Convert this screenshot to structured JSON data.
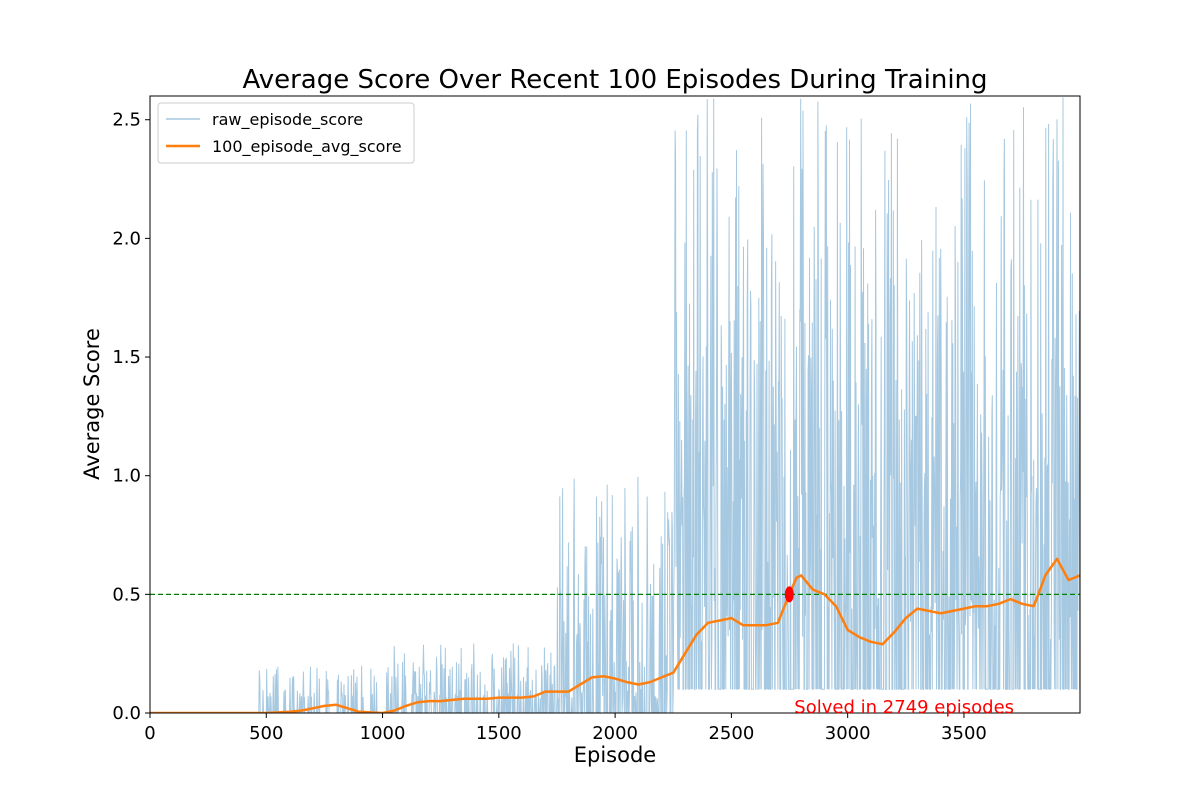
{
  "chart_data": {
    "type": "line",
    "title": "Average Score Over Recent 100 Episodes During Training",
    "xlabel": "Episode",
    "ylabel": "Average Score",
    "xlim": [
      0,
      3999
    ],
    "ylim": [
      0,
      2.6
    ],
    "x_ticks": [
      0,
      500,
      1000,
      1500,
      2000,
      2500,
      3000,
      3500
    ],
    "y_ticks": [
      0.0,
      0.5,
      1.0,
      1.5,
      2.0,
      2.5
    ],
    "x_tick_labels": [
      "0",
      "500",
      "1000",
      "1500",
      "2000",
      "2500",
      "3000",
      "3500"
    ],
    "y_tick_labels": [
      "0.0",
      "0.5",
      "1.0",
      "1.5",
      "2.0",
      "2.5"
    ],
    "grid": false,
    "legend": {
      "placement": "top-left",
      "entries": [
        "raw_episode_score",
        "100_episode_avg_score"
      ]
    },
    "colors": {
      "raw": "#a6c8e0",
      "avg": "#ff7f0e",
      "threshold": "#008000",
      "marker": "#ff0000",
      "annotation": "#ff0000"
    },
    "threshold": {
      "y": 0.5,
      "style": "dashed"
    },
    "solved_point": {
      "x": 2749,
      "y": 0.5
    },
    "annotation": {
      "text": "Solved in 2749 episodes",
      "x": 2749,
      "y": 0.0
    },
    "series": [
      {
        "name": "100_episode_avg_score",
        "style": "line",
        "x": [
          0,
          500,
          600,
          650,
          700,
          750,
          800,
          850,
          900,
          1000,
          1050,
          1100,
          1150,
          1200,
          1250,
          1300,
          1350,
          1400,
          1450,
          1500,
          1550,
          1600,
          1650,
          1700,
          1750,
          1800,
          1850,
          1900,
          1950,
          2000,
          2050,
          2100,
          2150,
          2200,
          2250,
          2300,
          2350,
          2400,
          2450,
          2500,
          2550,
          2600,
          2650,
          2700,
          2749,
          2780,
          2800,
          2850,
          2900,
          2950,
          3000,
          3050,
          3100,
          3150,
          3200,
          3250,
          3300,
          3350,
          3400,
          3450,
          3500,
          3550,
          3600,
          3650,
          3700,
          3750,
          3800,
          3820,
          3850,
          3900,
          3950,
          3999
        ],
        "y": [
          0.0,
          0.0,
          0.005,
          0.01,
          0.02,
          0.03,
          0.035,
          0.02,
          0.005,
          0.0,
          0.01,
          0.03,
          0.045,
          0.05,
          0.05,
          0.055,
          0.06,
          0.06,
          0.06,
          0.065,
          0.065,
          0.065,
          0.07,
          0.09,
          0.09,
          0.09,
          0.12,
          0.15,
          0.155,
          0.145,
          0.13,
          0.12,
          0.13,
          0.15,
          0.17,
          0.25,
          0.33,
          0.38,
          0.39,
          0.4,
          0.37,
          0.37,
          0.37,
          0.38,
          0.5,
          0.57,
          0.58,
          0.52,
          0.5,
          0.45,
          0.35,
          0.32,
          0.3,
          0.29,
          0.34,
          0.4,
          0.44,
          0.43,
          0.42,
          0.43,
          0.44,
          0.45,
          0.45,
          0.46,
          0.48,
          0.46,
          0.45,
          0.5,
          0.58,
          0.65,
          0.56,
          0.58
        ]
      },
      {
        "name": "raw_episode_score",
        "style": "dense_line",
        "segments": [
          {
            "x_range": [
              0,
              450
            ],
            "base": 0.0,
            "peaks": [
              0.0
            ],
            "peak_rate": 0.0
          },
          {
            "x_range": [
              450,
              1050
            ],
            "base": 0.0,
            "peaks": [
              0.1,
              0.2
            ],
            "peak_rate": 0.2
          },
          {
            "x_range": [
              1050,
              1750
            ],
            "base": 0.0,
            "peaks": [
              0.1,
              0.2,
              0.3
            ],
            "peak_rate": 0.35
          },
          {
            "x_range": [
              1750,
              2250
            ],
            "base": 0.0,
            "peaks": [
              0.1,
              0.3,
              0.5,
              0.8,
              1.0
            ],
            "peak_rate": 0.45
          },
          {
            "x_range": [
              2250,
              2750
            ],
            "base": 0.1,
            "peaks": [
              0.5,
              1.0,
              1.5,
              2.0,
              2.6
            ],
            "peak_rate": 0.6
          },
          {
            "x_range": [
              2750,
              3999
            ],
            "base": 0.1,
            "peaks": [
              0.5,
              1.0,
              1.5,
              2.0,
              2.6
            ],
            "peak_rate": 0.6
          }
        ]
      }
    ]
  }
}
